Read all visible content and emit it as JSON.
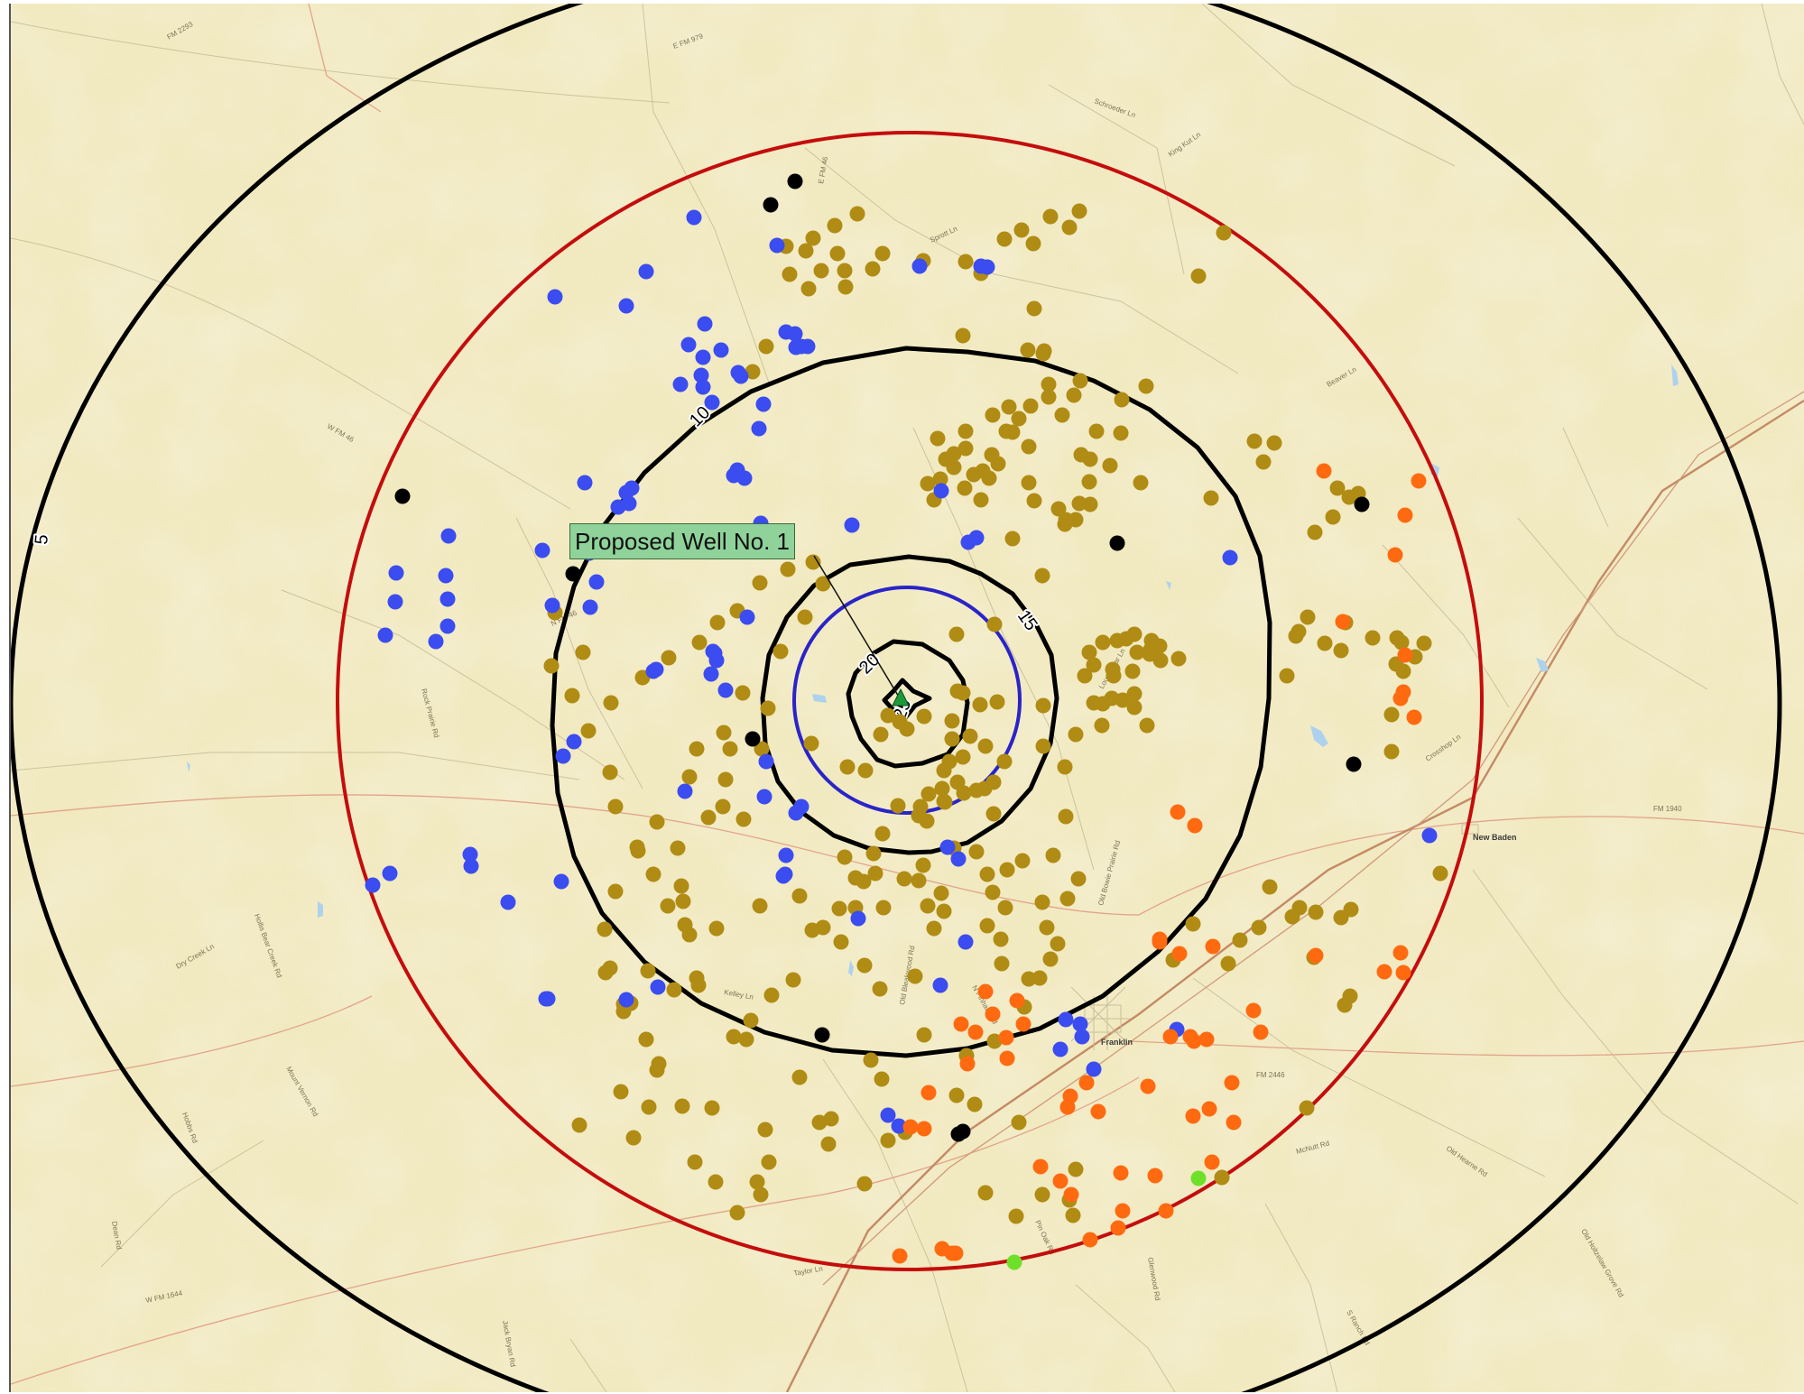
{
  "map": {
    "background_color": "#f1e9bf",
    "callout_text": "Proposed Well No. 1",
    "well_marker": "green-triangle-well-icon",
    "colors": {
      "blue_wells": "#3b4cf0",
      "olive_wells": "#b08c14",
      "orange_wells": "#ff6a10",
      "black_wells": "#000000",
      "green_wells": "#6fe02a",
      "radius_ring_red": "#c40d0d",
      "radius_ring_blue": "#2a24c8",
      "contours": "#000000"
    },
    "contour_labels": [
      "5",
      "10",
      "15",
      "20",
      "25"
    ],
    "towns": [
      "New Baden",
      "Franklin"
    ],
    "road_labels": [
      "FM 2293",
      "E FM 979",
      "E FM 46",
      "N FM 46",
      "W FM 46",
      "FM 1940",
      "FM 2446",
      "W FM 1644",
      "Old Bowie Prairie Rd",
      "Louse Star Ln",
      "Kelley Ln",
      "Old Hearne Rd",
      "N Pinhard Rd",
      "McNutt Rd",
      "Old Bleakwood Rd",
      "Pin Oak Rd",
      "Taylor Ln",
      "Jack Bryan Rd",
      "Dry Creek Ln",
      "Beaver Ln",
      "Schroeder Ln",
      "King Kut Ln",
      "Hollis Bear Creek Rd",
      "Mount Vernon Rd",
      "Rock Prairie Rd",
      "Crosshop Ln",
      "Old Holtzelaw Grove Rd",
      "Sprott Ln",
      "Glenwood Rd",
      "S Ranch Rd",
      "Hobbs Rd",
      "Dean Rd"
    ]
  }
}
